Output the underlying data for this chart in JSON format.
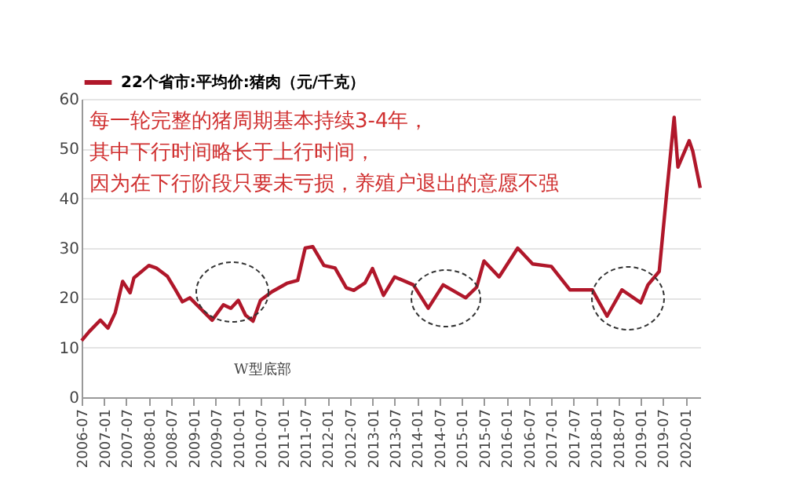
{
  "chart_data": {
    "type": "line",
    "annotations": [
      "每一轮完整的猪周期基本持续3-4年，",
      "其中下行时间略长于上行时间，",
      "因为在下行阶段只要未亏损，养殖户退出的意愿不强",
      "W型底部"
    ],
    "x": [
      "2006-07",
      "2006-09",
      "2006-12",
      "2007-02",
      "2007-04",
      "2007-06",
      "2007-08",
      "2007-09",
      "2008-01",
      "2008-03",
      "2008-06",
      "2008-08",
      "2008-10",
      "2008-12",
      "2009-04",
      "2009-06",
      "2009-09",
      "2009-11",
      "2010-01",
      "2010-03",
      "2010-05",
      "2010-07",
      "2010-10",
      "2011-02",
      "2011-05",
      "2011-07",
      "2011-09",
      "2011-12",
      "2012-03",
      "2012-06",
      "2012-08",
      "2012-11",
      "2013-01",
      "2013-04",
      "2013-07",
      "2013-12",
      "2014-04",
      "2014-08",
      "2015-02",
      "2015-05",
      "2015-07",
      "2015-11",
      "2016-04",
      "2016-08",
      "2017-01",
      "2017-06",
      "2017-12",
      "2018-04",
      "2018-08",
      "2019-01",
      "2019-03",
      "2019-06",
      "2019-08",
      "2019-10",
      "2019-11",
      "2020-02",
      "2020-03",
      "2020-05"
    ],
    "series": [
      {
        "name": "22个省市:平均价:猪肉（元/千克）",
        "color": "#b0172a",
        "values": [
          11.4,
          13.2,
          15.5,
          13.9,
          17,
          23.3,
          21,
          24,
          26.5,
          26,
          24.3,
          21.8,
          19.2,
          20,
          17,
          15.5,
          18.6,
          17.9,
          19.5,
          16.5,
          15.3,
          19.5,
          21.2,
          22.9,
          23.5,
          30,
          30.3,
          26.5,
          26,
          22,
          21.5,
          23,
          25.9,
          20.5,
          24.2,
          22.6,
          17.9,
          22.6,
          20,
          22.1,
          27.4,
          24.2,
          30,
          26.8,
          26.3,
          21.6,
          21.6,
          16.3,
          21.6,
          19,
          22.6,
          25.3,
          41,
          56.3,
          46.3,
          51.6,
          49.5,
          42.1
        ]
      }
    ],
    "xlim": [
      "2006-07",
      "2020-05"
    ],
    "xticks": [
      "2006-07",
      "2007-01",
      "2007-07",
      "2008-01",
      "2008-07",
      "2009-01",
      "2009-07",
      "2010-01",
      "2010-07",
      "2011-01",
      "2011-07",
      "2012-01",
      "2012-07",
      "2013-01",
      "2013-07",
      "2014-01",
      "2014-07",
      "2015-01",
      "2015-07",
      "2016-01",
      "2016-07",
      "2017-01",
      "2017-07",
      "2018-01",
      "2018-07",
      "2019-01",
      "2019-07",
      "2020-01"
    ],
    "ylim": [
      0,
      60
    ],
    "yticks": [
      0,
      10,
      20,
      30,
      40,
      50,
      60
    ],
    "grid": "y",
    "legend": "top"
  }
}
